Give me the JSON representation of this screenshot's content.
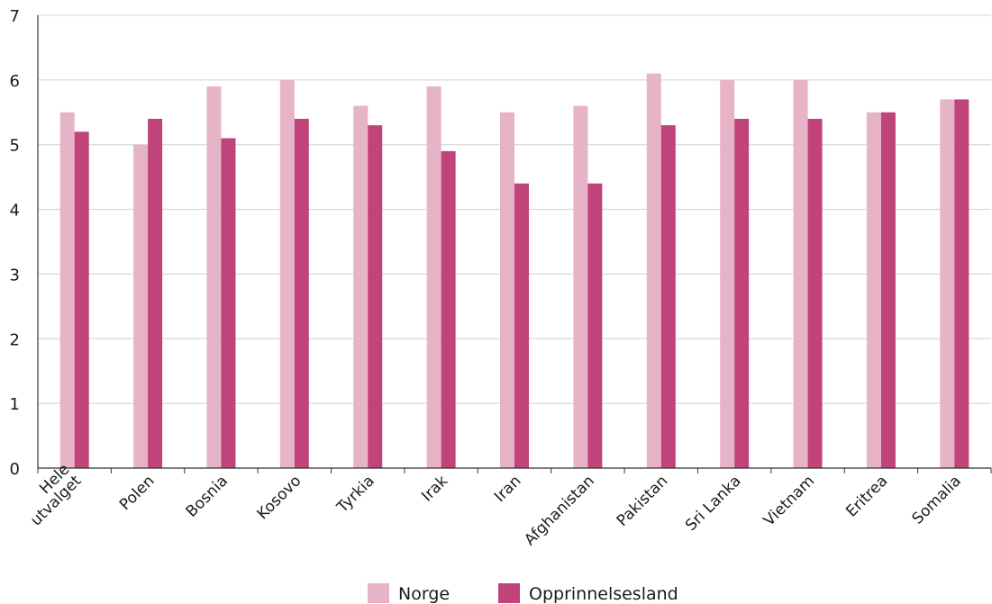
{
  "chart_data": {
    "type": "bar",
    "categories": [
      [
        "Hele",
        "utvalget"
      ],
      [
        "Polen"
      ],
      [
        "Bosnia"
      ],
      [
        "Kosovo"
      ],
      [
        "Tyrkia"
      ],
      [
        "Irak"
      ],
      [
        "Iran"
      ],
      [
        "Afghanistan"
      ],
      [
        "Pakistan"
      ],
      [
        "Sri Lanka"
      ],
      [
        "Vietnam"
      ],
      [
        "Eritrea"
      ],
      [
        "Somalia"
      ]
    ],
    "series": [
      {
        "name": "Norge",
        "color": "#e6b4c6",
        "values": [
          5.5,
          5.0,
          5.9,
          6.0,
          5.6,
          5.9,
          5.5,
          5.6,
          6.1,
          6.0,
          6.0,
          5.5,
          5.7
        ]
      },
      {
        "name": "Opprinnelsesland",
        "color": "#c0437a",
        "values": [
          5.2,
          5.4,
          5.1,
          5.4,
          5.3,
          4.9,
          4.4,
          4.4,
          5.3,
          5.4,
          5.4,
          5.5,
          5.7
        ]
      }
    ],
    "ylim": [
      0,
      7
    ],
    "yticks": [
      "0",
      "1",
      "2",
      "3",
      "4",
      "5",
      "6",
      "7"
    ],
    "grid": true,
    "legend_position": "bottom",
    "xlabel": "",
    "ylabel": "",
    "title": ""
  }
}
